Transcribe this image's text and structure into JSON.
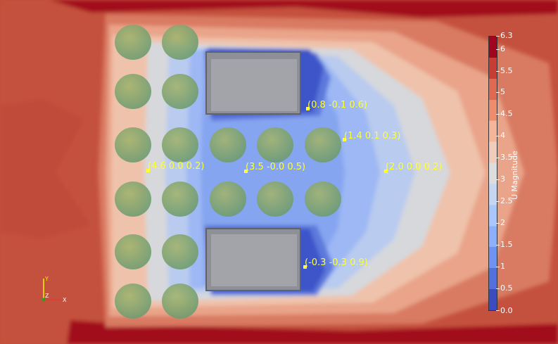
{
  "probes": [
    {
      "label": "(0.8 -0.1 0.6)"
    },
    {
      "label": "(1.4 0.1 0.3)"
    },
    {
      "label": "(4.6 0.0 0.2)"
    },
    {
      "label": "(3.5 -0.0 0.5)"
    },
    {
      "label": "(2.0 0.0 0.2)"
    },
    {
      "label": "(-0.3 -0.3 0.9)"
    }
  ],
  "colorbar": {
    "title": "U Magnitude",
    "max_label": "6.3",
    "min_label": "0.0",
    "ticks": [
      "6",
      "5.5",
      "5",
      "4.5",
      "4",
      "3.5",
      "3",
      "2.5",
      "2",
      "1.5",
      "1",
      "0.5"
    ],
    "colors": [
      "#3b4cc0",
      "#5470de",
      "#7093f3",
      "#8db0fe",
      "#aac7fd",
      "#c5d6f2",
      "#dddddd",
      "#f0cdbb",
      "#f5b59a",
      "#ee8d6e",
      "#df6a53",
      "#c53d35",
      "#a0041f"
    ]
  },
  "axes": {
    "y": "Y",
    "z": "Z",
    "x": "X"
  }
}
